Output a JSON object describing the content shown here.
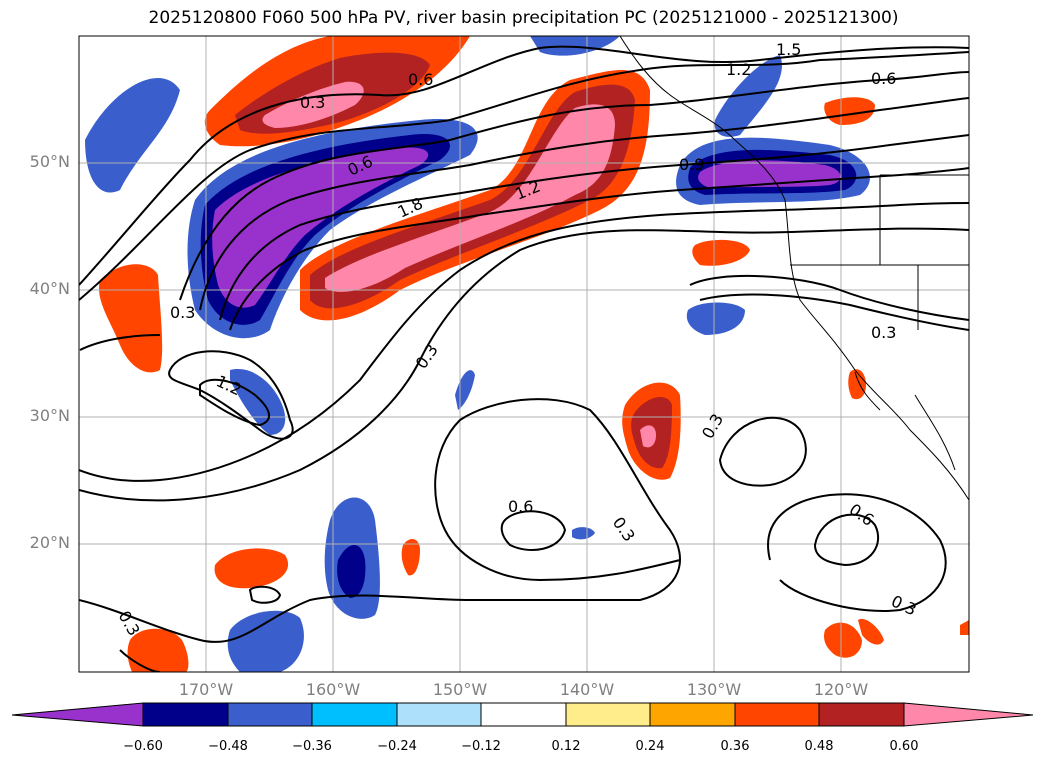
{
  "title": "2025120800 F060 500 hPa PV, river basin precipitation PC (2025121000 - 2025121300)",
  "map": {
    "extent_lon": [
      -180,
      -110
    ],
    "extent_lat": [
      10,
      60
    ],
    "lat_labels": [
      "50°N",
      "40°N",
      "30°N",
      "20°N"
    ],
    "lon_labels": [
      "170°W",
      "160°W",
      "150°W",
      "140°W",
      "130°W",
      "120°W"
    ],
    "contour_labels": [
      "0.3",
      "0.6",
      "0.9",
      "1.2",
      "1.5",
      "1.8"
    ]
  },
  "colorbar": {
    "ticks": [
      "−0.60",
      "−0.48",
      "−0.36",
      "−0.24",
      "−0.12",
      "0.12",
      "0.24",
      "0.36",
      "0.48",
      "0.60"
    ],
    "colors": [
      "#9932CC",
      "#00008B",
      "#3A5FCD",
      "#00BFFF",
      "#ADE0FA",
      "#FFFFFF",
      "#FFEC8B",
      "#FFA500",
      "#FF4500",
      "#B22222",
      "#FF88AA"
    ]
  },
  "colors": {
    "pos_strong": "#FF88AA",
    "pos_mid": "#B22222",
    "pos_low": "#FF4500",
    "neg_strong": "#9932CC",
    "neg_mid": "#00008B",
    "neg_low": "#3A5FCD",
    "grid": "#b0b0b0"
  }
}
